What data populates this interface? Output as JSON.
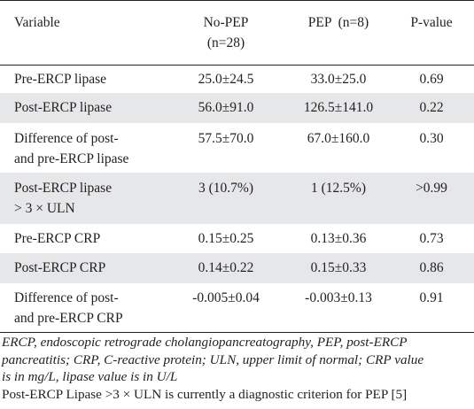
{
  "table": {
    "headers": [
      "Variable",
      "No-PEP\n(n=28)",
      "PEP  (n=8)",
      "P-value"
    ],
    "header_lines": {
      "variable": "Variable",
      "nopep_1": "No-PEP",
      "nopep_2": "(n=28)",
      "pep": "PEP  (n=8)",
      "pvalue": "P-value"
    },
    "rows": [
      {
        "variable": [
          "Pre-ERCP lipase"
        ],
        "no_pep": "25.0±24.5",
        "pep": "33.0±25.0",
        "p_value": "0.69",
        "shaded": false
      },
      {
        "variable": [
          "Post-ERCP lipase"
        ],
        "no_pep": "56.0±91.0",
        "pep": "126.5±141.0",
        "p_value": "0.22",
        "shaded": true
      },
      {
        "variable": [
          "Difference of post-",
          "and pre-ERCP lipase"
        ],
        "no_pep": "57.5±70.0",
        "pep": "67.0±160.0",
        "p_value": "0.30",
        "shaded": false
      },
      {
        "variable": [
          "Post-ERCP lipase",
          "> 3 × ULN"
        ],
        "no_pep": "3 (10.7%)",
        "pep": "1 (12.5%)",
        "p_value": ">0.99",
        "shaded": true
      },
      {
        "variable": [
          "Pre-ERCP CRP"
        ],
        "no_pep": "0.15±0.25",
        "pep": "0.13±0.36",
        "p_value": "0.73",
        "shaded": false
      },
      {
        "variable": [
          "Post-ERCP CRP"
        ],
        "no_pep": "0.14±0.22",
        "pep": "0.15±0.33",
        "p_value": "0.86",
        "shaded": true
      },
      {
        "variable": [
          "Difference of post-",
          "and pre-ERCP CRP"
        ],
        "no_pep": "-0.005±0.04",
        "pep": "-0.003±0.13",
        "p_value": "0.91",
        "shaded": false
      }
    ]
  },
  "footnotes": {
    "abbreviations": [
      "ERCP, endoscopic retrograde cholangiopancreatography, PEP, post-ERCP",
      "pancreatitis; CRP, C-reactive protein; ULN, upper limit of normal; CRP value",
      "is in mg/L, lipase value is in U/L"
    ],
    "note": "Post-ERCP Lipase >3 × ULN is currently a diagnostic criterion for PEP [5]"
  },
  "colors": {
    "rule": "#231f20",
    "shade": "#e6e7e8",
    "text": "#231f20"
  }
}
